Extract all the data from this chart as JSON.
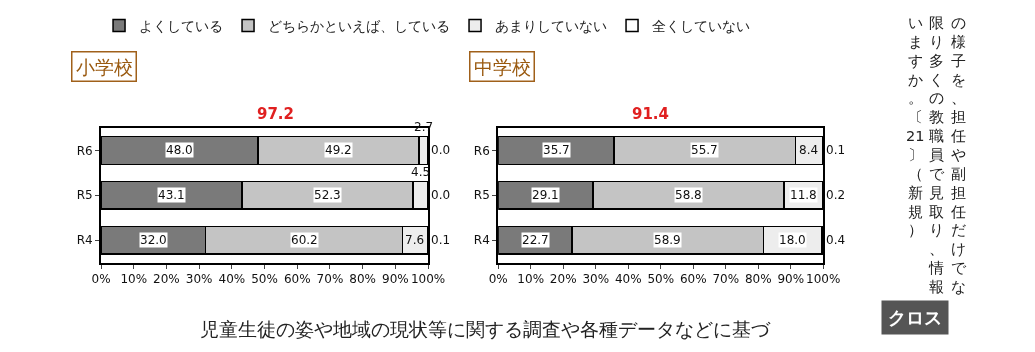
{
  "chart_data": [
    {
      "type": "bar",
      "orientation": "horizontal",
      "stacked": true,
      "title": "小学校",
      "categories": [
        "R6",
        "R5",
        "R4"
      ],
      "series": [
        {
          "color": "#7a7a7a",
          "values": [
            48.0,
            43.1,
            32.0
          ],
          "value_labels": [
            "48.0",
            "43.1",
            "32.0"
          ]
        },
        {
          "color": "#c4c4c4",
          "values": [
            49.2,
            52.3,
            60.2
          ],
          "value_labels": [
            "49.2",
            "52.3",
            "60.2"
          ]
        },
        {
          "color": "#ededed",
          "values": [
            2.7,
            4.5,
            7.6
          ],
          "value_labels": [
            "2.7",
            "4.5",
            "7.6"
          ]
        },
        {
          "color": "#ffffff",
          "values": [
            0.0,
            0.0,
            0.1
          ],
          "value_labels": [
            "0.0",
            "0.0",
            "0.1"
          ]
        }
      ],
      "xlim": [
        0,
        100
      ],
      "xticks": [
        {
          "value": 0,
          "label": "0%"
        },
        {
          "value": 10,
          "label": "10%"
        },
        {
          "value": 20,
          "label": "20%"
        },
        {
          "value": 30,
          "label": "30%"
        },
        {
          "value": 40,
          "label": "40%"
        },
        {
          "value": 50,
          "label": "50%"
        },
        {
          "value": 60,
          "label": "60%"
        },
        {
          "value": 70,
          "label": "70%"
        },
        {
          "value": 80,
          "label": "80%"
        },
        {
          "value": 90,
          "label": "90%"
        },
        {
          "value": 100,
          "label": "100%"
        }
      ],
      "grid": false,
      "annotations": [
        "97.2"
      ]
    },
    {
      "type": "bar",
      "orientation": "horizontal",
      "stacked": true,
      "title": "中学校",
      "categories": [
        "R6",
        "R5",
        "R4"
      ],
      "series": [
        {
          "name": "よくしている",
          "color": "#7a7a7a",
          "values": [
            35.7,
            29.1,
            22.7
          ],
          "value_labels": [
            "35.7",
            "29.1",
            "22.7"
          ]
        },
        {
          "name": "どちらかといえば、している",
          "color": "#c4c4c4",
          "values": [
            55.7,
            58.8,
            58.9
          ],
          "value_labels": [
            "55.7",
            "58.8",
            "58.9"
          ]
        },
        {
          "name": "あまりしていない",
          "color": "#ededed",
          "values": [
            8.4,
            11.8,
            18.0
          ],
          "value_labels": [
            "8.4",
            "11.8",
            "18.0"
          ]
        },
        {
          "name": "全くしていない",
          "color": "#ffffff",
          "values": [
            0.1,
            0.2,
            0.4
          ],
          "value_labels": [
            "0.1",
            "0.2",
            "0.4"
          ]
        }
      ],
      "xlim": [
        0,
        100
      ],
      "xticks": [
        {
          "value": 0,
          "label": "0%"
        },
        {
          "value": 10,
          "label": "10%"
        },
        {
          "value": 20,
          "label": "20%"
        },
        {
          "value": 30,
          "label": "30%"
        },
        {
          "value": 40,
          "label": "40%"
        },
        {
          "value": 50,
          "label": "50%"
        },
        {
          "value": 60,
          "label": "60%"
        },
        {
          "value": 70,
          "label": "70%"
        },
        {
          "value": 80,
          "label": "80%"
        },
        {
          "value": 90,
          "label": "90%"
        },
        {
          "value": 100,
          "label": "100%"
        }
      ],
      "grid": false,
      "legend": "top",
      "annotations": [
        "91.4",
        "の様子を、担任や副担任だけでな",
        "限り多くの教職員で見取り、情報",
        "いますか。〔21〕（新規）",
        "児童生徒の姿や地域の現状等に関する調査や各種データなどに基づ",
        "クロス"
      ]
    }
  ]
}
